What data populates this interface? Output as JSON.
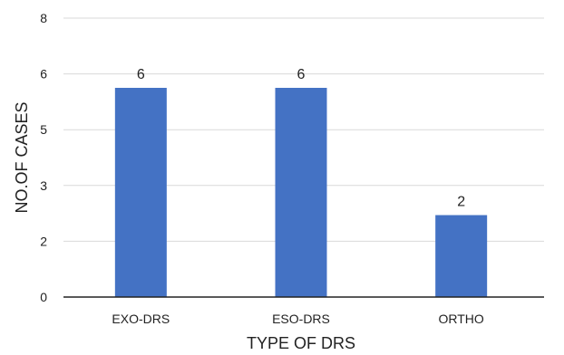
{
  "chart_data": {
    "type": "bar",
    "categories": [
      "EXO-DRS",
      "ESO-DRS",
      "ORTHO"
    ],
    "values": [
      6,
      6,
      2
    ],
    "value_positions": [
      6,
      6,
      2.35
    ],
    "data_labels": [
      "6",
      "6",
      "2"
    ],
    "y_ticks": [
      0,
      2,
      3,
      5,
      6,
      8
    ],
    "ylim": [
      0,
      8
    ],
    "xlabel": "TYPE OF DRS",
    "ylabel": "NO.OF CASES",
    "grid": true,
    "bar_color": "#4472c4",
    "grid_color": "#d9d9d9",
    "axis_color": "#222222"
  }
}
